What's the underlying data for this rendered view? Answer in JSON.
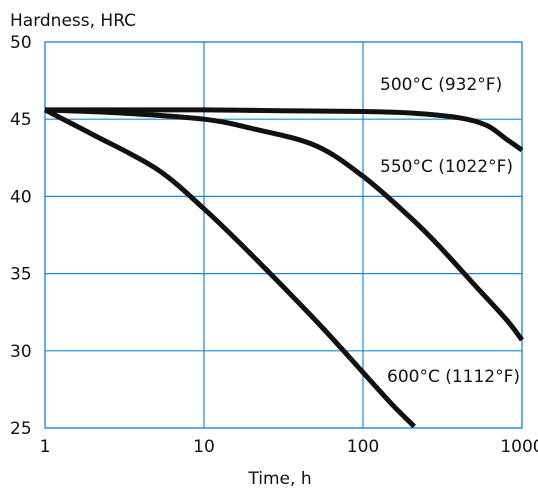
{
  "chart_data": {
    "type": "line",
    "xscale": "log",
    "xlim": [
      1,
      1000
    ],
    "ylim": [
      25,
      50
    ],
    "grid": true,
    "colors": {
      "grid": "#1a8ad4",
      "curve": "#111111",
      "frame": "#1a8ad4"
    },
    "xlabel": "Time, h",
    "ylabel": "Hardness, HRC",
    "xticks": [
      {
        "value": 1,
        "label": "1"
      },
      {
        "value": 10,
        "label": "10"
      },
      {
        "value": 100,
        "label": "100"
      },
      {
        "value": 1000,
        "label": "1000"
      }
    ],
    "yticks": [
      {
        "value": 25,
        "label": "25"
      },
      {
        "value": 30,
        "label": "30"
      },
      {
        "value": 35,
        "label": "35"
      },
      {
        "value": 40,
        "label": "40"
      },
      {
        "value": 45,
        "label": "45"
      },
      {
        "value": 50,
        "label": "50"
      }
    ],
    "series": [
      {
        "name": "500°C (932°F)",
        "x": [
          1,
          3,
          10,
          30,
          100,
          200,
          400,
          600,
          800,
          1000
        ],
        "y": [
          45.6,
          45.6,
          45.6,
          45.55,
          45.5,
          45.4,
          45.1,
          44.6,
          43.7,
          43.0
        ]
      },
      {
        "name": "550°C (1022°F)",
        "x": [
          1,
          3,
          10,
          20,
          50,
          100,
          200,
          300,
          500,
          800,
          1000
        ],
        "y": [
          45.6,
          45.4,
          45.0,
          44.4,
          43.3,
          41.3,
          38.6,
          36.8,
          34.3,
          32.0,
          30.7
        ]
      },
      {
        "name": "600°C (1112°F)",
        "x": [
          1,
          2,
          5,
          10,
          20,
          50,
          100,
          150,
          210
        ],
        "y": [
          45.6,
          44.0,
          41.8,
          39.2,
          36.2,
          32.0,
          28.6,
          26.6,
          25.1
        ]
      }
    ]
  }
}
